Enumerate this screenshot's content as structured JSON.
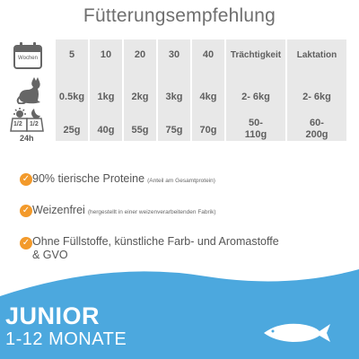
{
  "title": "Fütterungsempfehlung",
  "row_icons": {
    "calendar_label": "Wochen",
    "calendar_icon": "calendar-icon",
    "cat_icon": "cat-icon",
    "day_night_icon": "day-night-icon",
    "half_left": "1/2",
    "half_right": "1/2",
    "hours": "24h"
  },
  "columns": [
    {
      "weeks": "5",
      "weight": "0.5kg",
      "amount": "25g"
    },
    {
      "weeks": "10",
      "weight": "1kg",
      "amount": "40g"
    },
    {
      "weeks": "20",
      "weight": "2kg",
      "amount": "55g"
    },
    {
      "weeks": "30",
      "weight": "3kg",
      "amount": "75g"
    },
    {
      "weeks": "40",
      "weight": "4kg",
      "amount": "70g"
    },
    {
      "weeks": "Trächtigkeit",
      "weight": "2- 6kg",
      "amount_line1": "50-",
      "amount_line2": "110g"
    },
    {
      "weeks": "Laktation",
      "weight": "2- 6kg",
      "amount_line1": "60-",
      "amount_line2": "200g"
    }
  ],
  "bullets": [
    {
      "text": "90% tierische Proteine",
      "note": "(Anteil am Gesamtprotein)"
    },
    {
      "text": "Weizenfrei",
      "note": "(hergestellt in einer weizenverarbeitenden Fabrik)"
    },
    {
      "text_line1": "Ohne Füllstoffe, künstliche Farb- und Aromastoffe",
      "text_line2": "& GVO"
    }
  ],
  "product": {
    "name": "JUNIOR",
    "age": "1-12 MONATE",
    "fish_icon": "fish-icon"
  },
  "colors": {
    "accent_orange": "#f39a2b",
    "wave_blue": "#4ca8de",
    "table_grey": "#e8e8e8"
  }
}
